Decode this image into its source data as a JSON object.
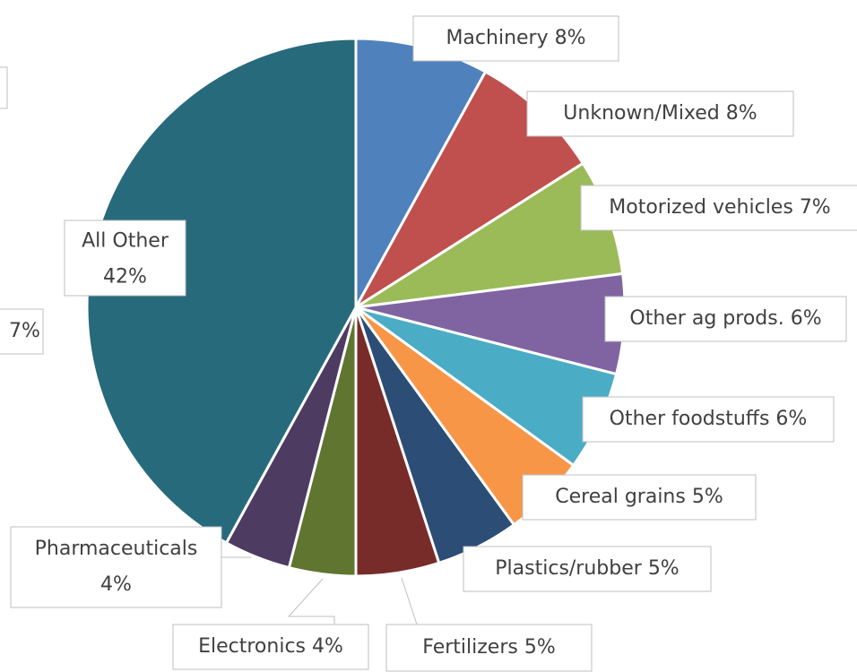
{
  "chart_data": {
    "type": "pie",
    "categories": [
      "Machinery",
      "Unknown/Mixed",
      "Motorized vehicles",
      "Other ag prods.",
      "Other foodstuffs",
      "Cereal grains",
      "Plastics/rubber",
      "Fertilizers",
      "Electronics",
      "Pharmaceuticals",
      "All Other"
    ],
    "values": [
      8,
      8,
      7,
      6,
      6,
      5,
      5,
      5,
      4,
      4,
      42
    ],
    "value_labels": [
      "8%",
      "8%",
      "7%",
      "6%",
      "6%",
      "5%",
      "5%",
      "5%",
      "4%",
      "4%",
      "42%"
    ],
    "colors": [
      "#4f81bd",
      "#c0504d",
      "#9bbb59",
      "#8064a2",
      "#4bacc6",
      "#f79646",
      "#2c4d75",
      "#772c2a",
      "#5f7530",
      "#4d3b62",
      "#276a7c"
    ],
    "annotations": [
      "7%"
    ]
  }
}
